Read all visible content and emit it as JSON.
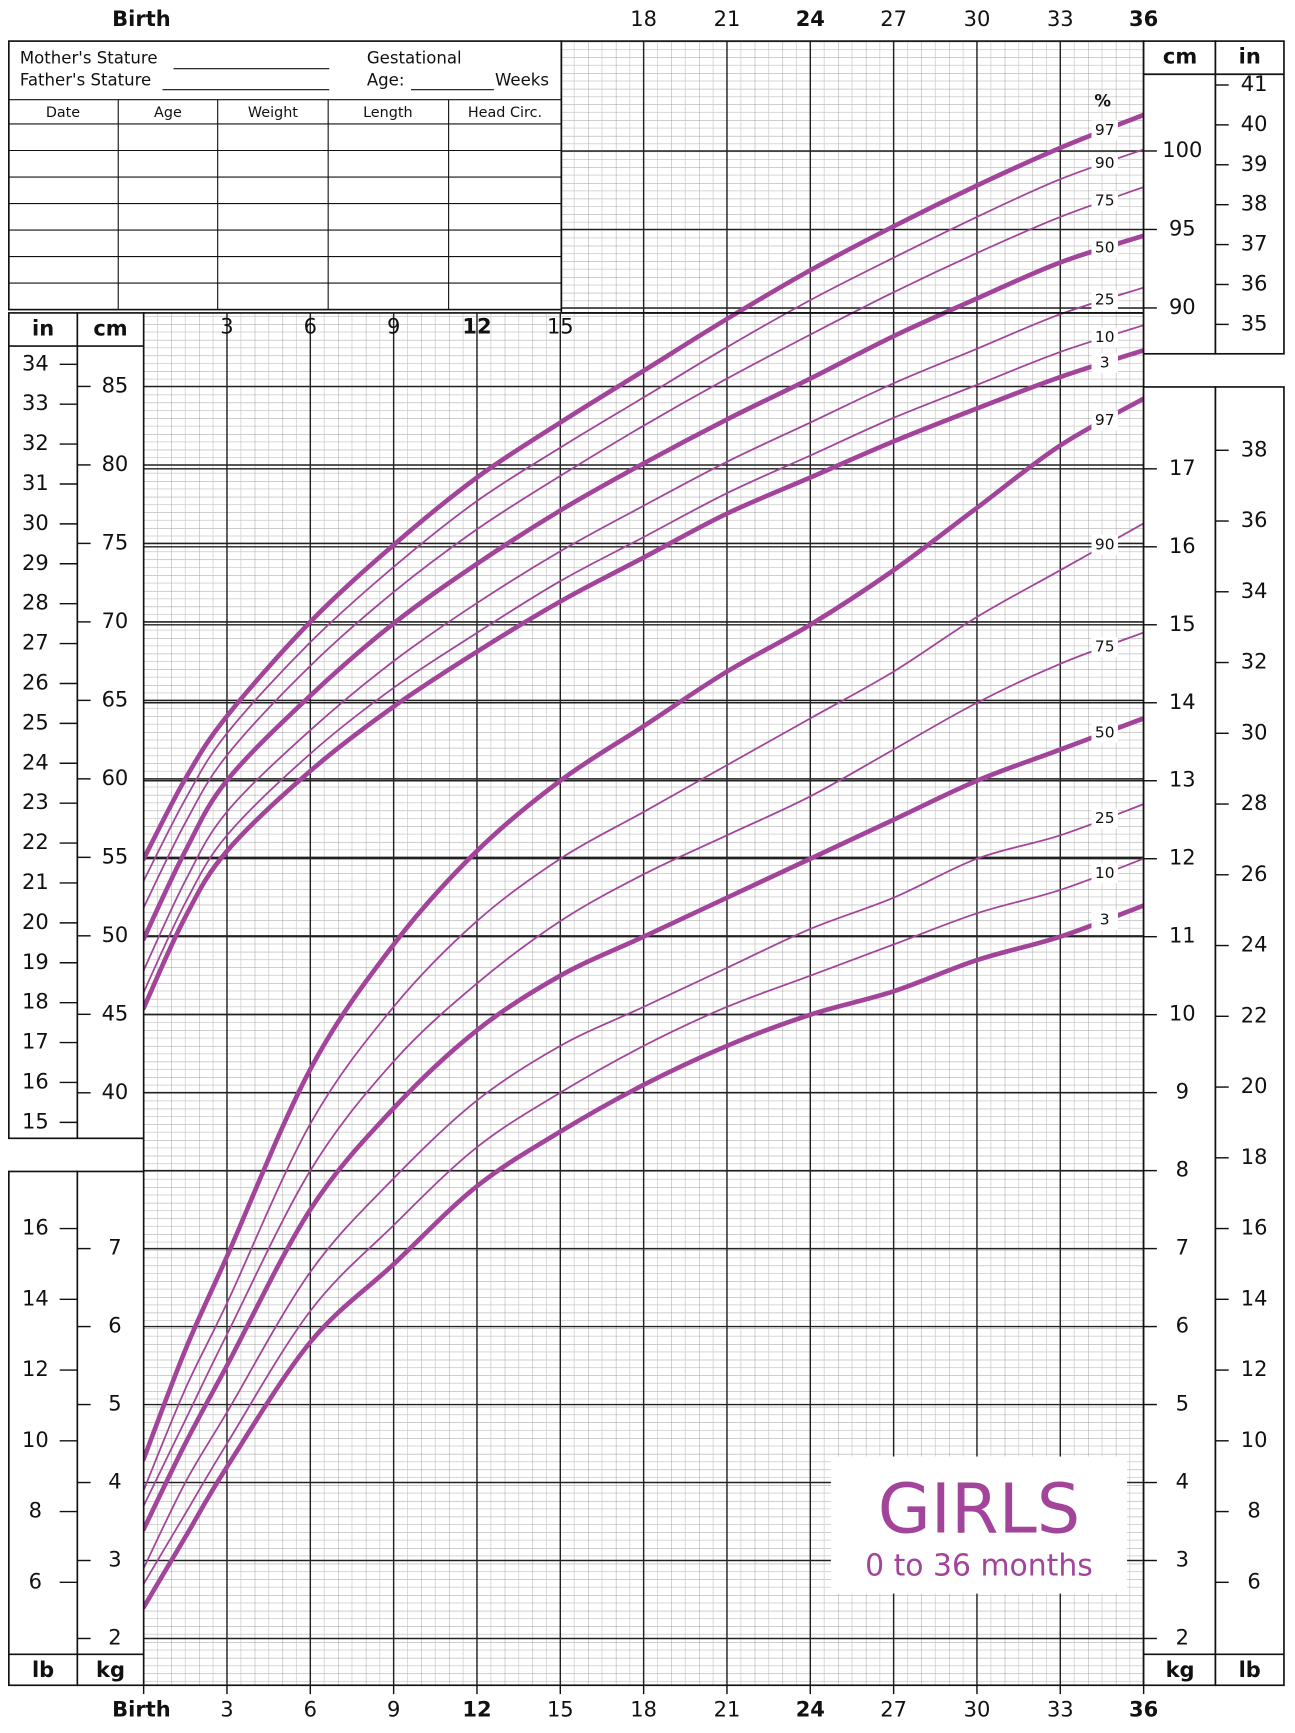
{
  "form": {
    "mother": "Mother's Stature",
    "father": "Father's Stature",
    "gestational": "Gestational",
    "age": "Age:",
    "weeks": "Weeks",
    "columns": [
      "Date",
      "Age",
      "Weight",
      "Length",
      "Head Circ."
    ]
  },
  "badge": {
    "title": "GIRLS",
    "subtitle": "0 to 36 months"
  },
  "chart_data": [
    {
      "type": "line",
      "y_unit": "cm",
      "y2_unit": "in",
      "percent_label": "%",
      "xlim": [
        0,
        36
      ],
      "xticks": [
        {
          "value": 0,
          "label": "Birth"
        },
        3,
        6,
        9,
        12,
        15,
        18,
        21,
        24,
        27,
        30,
        33,
        36
      ],
      "ylim": [
        37.1,
        107.0
      ],
      "yticks": [
        40,
        45,
        50,
        55,
        60,
        65,
        70,
        75,
        80,
        85,
        90,
        95,
        100
      ],
      "y2lim": [
        14.6,
        42.1
      ],
      "y2ticks": [
        15,
        16,
        17,
        18,
        19,
        20,
        21,
        22,
        23,
        24,
        25,
        26,
        27,
        28,
        29,
        30,
        31,
        32,
        33,
        34,
        35,
        36,
        37,
        38,
        39,
        40,
        41
      ],
      "grid": true,
      "x": [
        0,
        1.5,
        3,
        6,
        9,
        12,
        15,
        18,
        21,
        24,
        27,
        30,
        33,
        36
      ],
      "series": [
        {
          "name": "97",
          "color": "#a3449b",
          "values": [
            54.9,
            60.0,
            64.0,
            70.0,
            74.9,
            79.2,
            82.7,
            86.0,
            89.3,
            92.4,
            95.2,
            97.8,
            100.2,
            102.3
          ]
        },
        {
          "name": "90",
          "color": "#a3449b",
          "values": [
            53.5,
            58.7,
            62.9,
            68.7,
            73.5,
            77.7,
            81.1,
            84.3,
            87.5,
            90.5,
            93.2,
            95.8,
            98.2,
            100.1
          ]
        },
        {
          "name": "75",
          "color": "#a3449b",
          "values": [
            51.8,
            57.2,
            61.5,
            67.2,
            71.9,
            75.9,
            79.3,
            82.5,
            85.5,
            88.3,
            91.0,
            93.5,
            95.8,
            97.7
          ]
        },
        {
          "name": "50",
          "color": "#a3449b",
          "values": [
            49.8,
            55.4,
            59.9,
            65.3,
            69.9,
            73.7,
            77.1,
            80.1,
            82.9,
            85.5,
            88.2,
            90.6,
            92.9,
            94.6
          ]
        },
        {
          "name": "25",
          "color": "#a3449b",
          "values": [
            47.8,
            53.5,
            57.9,
            63.1,
            67.5,
            71.2,
            74.5,
            77.4,
            80.2,
            82.7,
            85.2,
            87.4,
            89.6,
            91.3
          ]
        },
        {
          "name": "10",
          "color": "#a3449b",
          "values": [
            46.4,
            52.1,
            56.4,
            61.6,
            65.8,
            69.3,
            72.6,
            75.4,
            78.2,
            80.6,
            83.0,
            85.1,
            87.2,
            88.9
          ]
        },
        {
          "name": "3",
          "color": "#a3449b",
          "values": [
            45.4,
            51.2,
            55.4,
            60.5,
            64.6,
            68.1,
            71.3,
            74.1,
            76.9,
            79.2,
            81.5,
            83.6,
            85.6,
            87.3
          ]
        }
      ]
    },
    {
      "type": "line",
      "y_unit": "kg",
      "y2_unit": "lb",
      "xlim": [
        0,
        36
      ],
      "xticks": [
        {
          "value": 0,
          "label": "Birth"
        },
        3,
        6,
        9,
        12,
        15,
        18,
        21,
        24,
        27,
        30,
        33,
        36
      ],
      "ylim": [
        1.4,
        18.05
      ],
      "yticks": [
        2,
        3,
        4,
        5,
        6,
        7,
        8,
        9,
        10,
        11,
        12,
        13,
        14,
        15,
        16,
        17
      ],
      "y2lim": [
        3.09,
        39.79
      ],
      "y2ticks": [
        6,
        8,
        10,
        12,
        14,
        16,
        18,
        20,
        22,
        24,
        26,
        28,
        30,
        32,
        34,
        36,
        38
      ],
      "grid": true,
      "x": [
        0,
        1.5,
        3,
        6,
        9,
        12,
        15,
        18,
        21,
        24,
        27,
        30,
        33,
        36
      ],
      "series": [
        {
          "name": "97",
          "color": "#a3449b",
          "values": [
            4.3,
            5.7,
            6.9,
            9.3,
            10.9,
            12.1,
            13.0,
            13.7,
            14.4,
            15.0,
            15.7,
            16.5,
            17.3,
            17.9
          ]
        },
        {
          "name": "90",
          "color": "#a3449b",
          "values": [
            3.9,
            5.2,
            6.3,
            8.6,
            10.1,
            11.2,
            12.0,
            12.6,
            13.2,
            13.8,
            14.4,
            15.1,
            15.7,
            16.3
          ]
        },
        {
          "name": "75",
          "color": "#a3449b",
          "values": [
            3.7,
            4.8,
            5.9,
            8.0,
            9.4,
            10.4,
            11.2,
            11.8,
            12.3,
            12.8,
            13.4,
            14.0,
            14.5,
            14.9
          ]
        },
        {
          "name": "50",
          "color": "#a3449b",
          "values": [
            3.4,
            4.5,
            5.5,
            7.5,
            8.8,
            9.8,
            10.5,
            11.0,
            11.5,
            12.0,
            12.5,
            13.0,
            13.4,
            13.8
          ]
        },
        {
          "name": "25",
          "color": "#a3449b",
          "values": [
            2.9,
            4.0,
            4.9,
            6.7,
            7.9,
            8.9,
            9.6,
            10.1,
            10.6,
            11.1,
            11.5,
            12.0,
            12.3,
            12.7
          ]
        },
        {
          "name": "10",
          "color": "#a3449b",
          "values": [
            2.7,
            3.6,
            4.5,
            6.2,
            7.3,
            8.3,
            9.0,
            9.6,
            10.1,
            10.5,
            10.9,
            11.3,
            11.6,
            12.0
          ]
        },
        {
          "name": "3",
          "color": "#a3449b",
          "values": [
            2.4,
            3.3,
            4.2,
            5.8,
            6.8,
            7.8,
            8.5,
            9.1,
            9.6,
            10.0,
            10.3,
            10.7,
            11.0,
            11.4
          ]
        }
      ]
    }
  ]
}
